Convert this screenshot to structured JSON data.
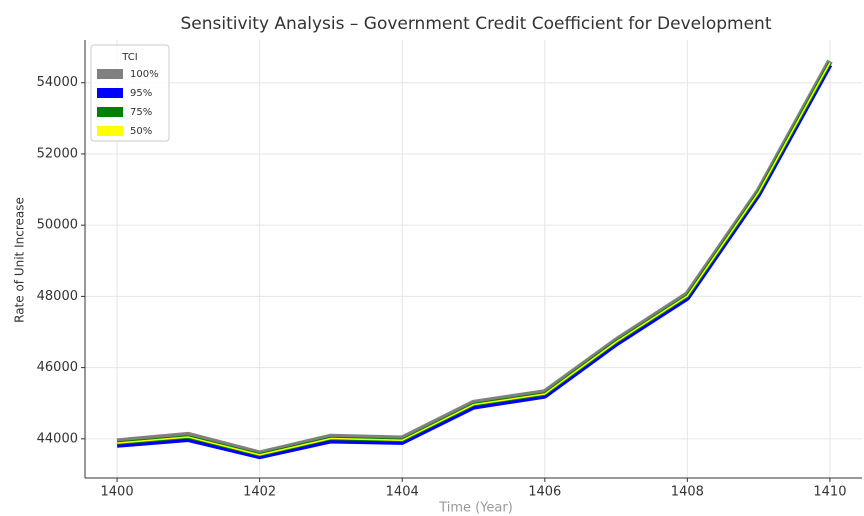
{
  "chart_data": {
    "type": "line",
    "title": "Sensitivity Analysis – Government Credit Coefficient for Development",
    "x_label": "Time (Year)",
    "y_label": "Rate of Unit Increase",
    "x": [
      1400,
      1401,
      1402,
      1403,
      1404,
      1405,
      1406,
      1407,
      1408,
      1409,
      1410
    ],
    "legend_title": "TCI",
    "legend_position": "upper-left",
    "grid": true,
    "series": [
      {
        "name": "100%",
        "color": "#808080",
        "values": [
          43930,
          44110,
          43590,
          44060,
          44010,
          45010,
          45310,
          46760,
          48060,
          50960,
          54610
        ]
      },
      {
        "name": "95%",
        "color": "#0000ff",
        "values": [
          43820,
          43980,
          43500,
          43940,
          43900,
          44890,
          45200,
          46660,
          47950,
          50860,
          54500
        ]
      },
      {
        "name": "75%",
        "color": "#008000",
        "values": [
          43880,
          44050,
          43550,
          44010,
          43960,
          44960,
          45260,
          46720,
          48010,
          50920,
          54560
        ]
      },
      {
        "name": "50%",
        "color": "#ffff00",
        "values": [
          43880,
          44050,
          43550,
          44010,
          43960,
          44960,
          45260,
          46720,
          48010,
          50920,
          54560
        ]
      }
    ],
    "xlim": [
      1399.55,
      1410.45
    ],
    "xticks": [
      1400,
      1402,
      1404,
      1406,
      1408,
      1410
    ],
    "ylim": [
      42900,
      55200
    ],
    "yticks": [
      44000,
      46000,
      48000,
      50000,
      52000,
      54000
    ]
  }
}
